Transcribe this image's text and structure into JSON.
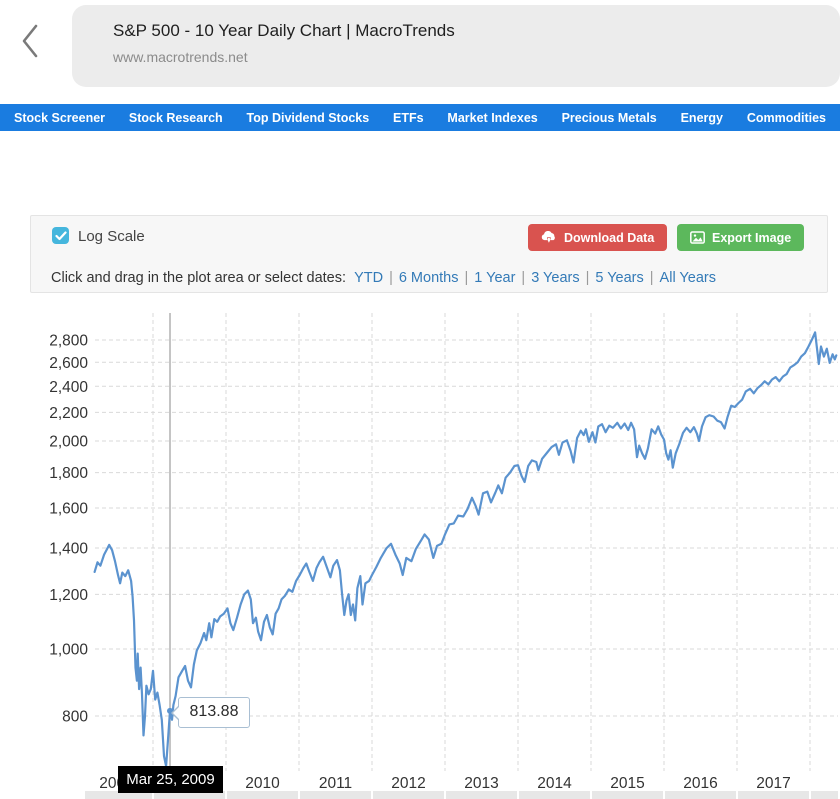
{
  "browser": {
    "back_icon": "chevron-left",
    "title": "S&P 500 - 10 Year Daily Chart | MacroTrends",
    "url": "www.macrotrends.net"
  },
  "nav": {
    "bg_color": "#1a7ce0",
    "items": [
      "Stock Screener",
      "Stock Research",
      "Top Dividend Stocks",
      "ETFs",
      "Market Indexes",
      "Precious Metals",
      "Energy",
      "Commodities"
    ]
  },
  "controls": {
    "log_scale_label": "Log Scale",
    "log_scale_checked": true,
    "checkbox_color": "#45b6dd",
    "download_button": {
      "label": "Download Data",
      "color": "#d9534f",
      "icon": "download-cloud-icon"
    },
    "export_button": {
      "label": "Export Image",
      "color": "#5cb85c",
      "icon": "image-icon"
    },
    "date_prompt": "Click and drag in the plot area or select dates:",
    "date_links": [
      "YTD",
      "6 Months",
      "1 Year",
      "3 Years",
      "5 Years",
      "All Years"
    ],
    "link_color": "#337ab7",
    "separator": "|"
  },
  "chart_data": {
    "type": "line",
    "title": "",
    "scale": "log",
    "grid": true,
    "line_color": "#5b93cf",
    "grid_color": "#d9d9d9",
    "crosshair_color": "#ababab",
    "x_range": [
      2008.2,
      2018.36
    ],
    "y_range": [
      668,
      3040
    ],
    "y_ticks": [
      800,
      1000,
      1200,
      1400,
      1600,
      1800,
      2000,
      2200,
      2400,
      2600,
      2800
    ],
    "y_tick_labels": [
      "800",
      "1,000",
      "1,200",
      "1,400",
      "1,600",
      "1,800",
      "2,000",
      "2,200",
      "2,400",
      "2,600",
      "2,800"
    ],
    "x_tick_years": [
      2008,
      2009,
      2010,
      2011,
      2012,
      2013,
      2014,
      2015,
      2016,
      2017
    ],
    "x_tick_labels": [
      "2008",
      "2009",
      "2010",
      "2011",
      "2012",
      "2013",
      "2014",
      "2015",
      "2016",
      "2017"
    ],
    "crosshair": {
      "t": 2009.233,
      "value": 813.88,
      "value_label": "813.88",
      "date_label": "Mar 25, 2009"
    },
    "series": [
      {
        "name": "S&P 500",
        "points": [
          [
            2008.2,
            1293
          ],
          [
            2008.24,
            1335
          ],
          [
            2008.28,
            1320
          ],
          [
            2008.33,
            1370
          ],
          [
            2008.37,
            1395
          ],
          [
            2008.4,
            1415
          ],
          [
            2008.44,
            1390
          ],
          [
            2008.48,
            1340
          ],
          [
            2008.52,
            1280
          ],
          [
            2008.55,
            1245
          ],
          [
            2008.58,
            1290
          ],
          [
            2008.62,
            1275
          ],
          [
            2008.66,
            1300
          ],
          [
            2008.7,
            1255
          ],
          [
            2008.72,
            1190
          ],
          [
            2008.74,
            1100
          ],
          [
            2008.76,
            940
          ],
          [
            2008.78,
            900
          ],
          [
            2008.79,
            985
          ],
          [
            2008.81,
            875
          ],
          [
            2008.83,
            940
          ],
          [
            2008.85,
            860
          ],
          [
            2008.87,
            750
          ],
          [
            2008.89,
            800
          ],
          [
            2008.91,
            885
          ],
          [
            2008.94,
            860
          ],
          [
            2008.97,
            875
          ],
          [
            2009.0,
            930
          ],
          [
            2009.03,
            845
          ],
          [
            2009.06,
            865
          ],
          [
            2009.09,
            830
          ],
          [
            2009.12,
            790
          ],
          [
            2009.15,
            700
          ],
          [
            2009.18,
            677
          ],
          [
            2009.21,
            750
          ],
          [
            2009.233,
            813.88
          ],
          [
            2009.26,
            790
          ],
          [
            2009.28,
            830
          ],
          [
            2009.31,
            855
          ],
          [
            2009.35,
            910
          ],
          [
            2009.4,
            930
          ],
          [
            2009.44,
            945
          ],
          [
            2009.48,
            900
          ],
          [
            2009.52,
            880
          ],
          [
            2009.56,
            950
          ],
          [
            2009.6,
            995
          ],
          [
            2009.65,
            1020
          ],
          [
            2009.7,
            1055
          ],
          [
            2009.73,
            1030
          ],
          [
            2009.77,
            1090
          ],
          [
            2009.8,
            1040
          ],
          [
            2009.84,
            1105
          ],
          [
            2009.88,
            1095
          ],
          [
            2009.92,
            1115
          ],
          [
            2009.97,
            1125
          ],
          [
            2010.02,
            1145
          ],
          [
            2010.06,
            1090
          ],
          [
            2010.1,
            1065
          ],
          [
            2010.15,
            1110
          ],
          [
            2010.2,
            1160
          ],
          [
            2010.25,
            1200
          ],
          [
            2010.3,
            1215
          ],
          [
            2010.34,
            1180
          ],
          [
            2010.37,
            1090
          ],
          [
            2010.41,
            1110
          ],
          [
            2010.44,
            1060
          ],
          [
            2010.48,
            1030
          ],
          [
            2010.52,
            1095
          ],
          [
            2010.56,
            1120
          ],
          [
            2010.6,
            1075
          ],
          [
            2010.64,
            1050
          ],
          [
            2010.68,
            1125
          ],
          [
            2010.72,
            1145
          ],
          [
            2010.76,
            1180
          ],
          [
            2010.81,
            1195
          ],
          [
            2010.86,
            1220
          ],
          [
            2010.91,
            1210
          ],
          [
            2010.96,
            1255
          ],
          [
            2011.01,
            1280
          ],
          [
            2011.06,
            1310
          ],
          [
            2011.1,
            1330
          ],
          [
            2011.14,
            1295
          ],
          [
            2011.19,
            1255
          ],
          [
            2011.24,
            1310
          ],
          [
            2011.28,
            1335
          ],
          [
            2011.33,
            1360
          ],
          [
            2011.38,
            1315
          ],
          [
            2011.43,
            1270
          ],
          [
            2011.47,
            1320
          ],
          [
            2011.52,
            1345
          ],
          [
            2011.56,
            1300
          ],
          [
            2011.59,
            1200
          ],
          [
            2011.62,
            1120
          ],
          [
            2011.65,
            1175
          ],
          [
            2011.68,
            1200
          ],
          [
            2011.71,
            1120
          ],
          [
            2011.74,
            1160
          ],
          [
            2011.77,
            1100
          ],
          [
            2011.8,
            1225
          ],
          [
            2011.84,
            1275
          ],
          [
            2011.87,
            1160
          ],
          [
            2011.91,
            1245
          ],
          [
            2011.96,
            1255
          ],
          [
            2012.0,
            1280
          ],
          [
            2012.06,
            1315
          ],
          [
            2012.12,
            1355
          ],
          [
            2012.2,
            1400
          ],
          [
            2012.26,
            1420
          ],
          [
            2012.32,
            1370
          ],
          [
            2012.38,
            1330
          ],
          [
            2012.42,
            1280
          ],
          [
            2012.47,
            1355
          ],
          [
            2012.54,
            1340
          ],
          [
            2012.6,
            1395
          ],
          [
            2012.68,
            1440
          ],
          [
            2012.72,
            1465
          ],
          [
            2012.78,
            1440
          ],
          [
            2012.84,
            1355
          ],
          [
            2012.89,
            1410
          ],
          [
            2012.95,
            1420
          ],
          [
            2013.0,
            1465
          ],
          [
            2013.06,
            1515
          ],
          [
            2013.12,
            1520
          ],
          [
            2013.18,
            1560
          ],
          [
            2013.25,
            1555
          ],
          [
            2013.31,
            1595
          ],
          [
            2013.37,
            1655
          ],
          [
            2013.42,
            1610
          ],
          [
            2013.46,
            1565
          ],
          [
            2013.52,
            1680
          ],
          [
            2013.58,
            1690
          ],
          [
            2013.63,
            1630
          ],
          [
            2013.69,
            1685
          ],
          [
            2013.73,
            1725
          ],
          [
            2013.78,
            1680
          ],
          [
            2013.83,
            1770
          ],
          [
            2013.89,
            1800
          ],
          [
            2013.95,
            1840
          ],
          [
            2014.0,
            1845
          ],
          [
            2014.05,
            1780
          ],
          [
            2014.09,
            1745
          ],
          [
            2014.14,
            1840
          ],
          [
            2014.19,
            1875
          ],
          [
            2014.25,
            1865
          ],
          [
            2014.28,
            1815
          ],
          [
            2014.33,
            1885
          ],
          [
            2014.4,
            1925
          ],
          [
            2014.46,
            1960
          ],
          [
            2014.52,
            1978
          ],
          [
            2014.56,
            1910
          ],
          [
            2014.61,
            1990
          ],
          [
            2014.67,
            2005
          ],
          [
            2014.72,
            1935
          ],
          [
            2014.76,
            1862
          ],
          [
            2014.81,
            2020
          ],
          [
            2014.86,
            2070
          ],
          [
            2014.9,
            2040
          ],
          [
            2014.93,
            2080
          ],
          [
            2014.97,
            1995
          ],
          [
            2015.02,
            2060
          ],
          [
            2015.06,
            1990
          ],
          [
            2015.1,
            2100
          ],
          [
            2015.15,
            2115
          ],
          [
            2015.2,
            2060
          ],
          [
            2015.25,
            2105
          ],
          [
            2015.3,
            2090
          ],
          [
            2015.36,
            2125
          ],
          [
            2015.41,
            2085
          ],
          [
            2015.46,
            2120
          ],
          [
            2015.51,
            2075
          ],
          [
            2015.55,
            2125
          ],
          [
            2015.59,
            2080
          ],
          [
            2015.63,
            1895
          ],
          [
            2015.66,
            1970
          ],
          [
            2015.7,
            1920
          ],
          [
            2015.74,
            1885
          ],
          [
            2015.78,
            1950
          ],
          [
            2015.83,
            2080
          ],
          [
            2015.88,
            2050
          ],
          [
            2015.92,
            2100
          ],
          [
            2015.96,
            2045
          ],
          [
            2016.0,
            2010
          ],
          [
            2016.03,
            1920
          ],
          [
            2016.06,
            1880
          ],
          [
            2016.09,
            1940
          ],
          [
            2016.12,
            1830
          ],
          [
            2016.16,
            1920
          ],
          [
            2016.21,
            1980
          ],
          [
            2016.26,
            2055
          ],
          [
            2016.31,
            2090
          ],
          [
            2016.36,
            2060
          ],
          [
            2016.41,
            2095
          ],
          [
            2016.45,
            2050
          ],
          [
            2016.48,
            2000
          ],
          [
            2016.52,
            2100
          ],
          [
            2016.57,
            2165
          ],
          [
            2016.62,
            2180
          ],
          [
            2016.68,
            2170
          ],
          [
            2016.73,
            2140
          ],
          [
            2016.78,
            2130
          ],
          [
            2016.83,
            2085
          ],
          [
            2016.87,
            2165
          ],
          [
            2016.92,
            2250
          ],
          [
            2016.97,
            2240
          ],
          [
            2017.02,
            2270
          ],
          [
            2017.07,
            2295
          ],
          [
            2017.12,
            2360
          ],
          [
            2017.18,
            2380
          ],
          [
            2017.23,
            2345
          ],
          [
            2017.28,
            2385
          ],
          [
            2017.33,
            2410
          ],
          [
            2017.38,
            2440
          ],
          [
            2017.43,
            2415
          ],
          [
            2017.48,
            2455
          ],
          [
            2017.53,
            2475
          ],
          [
            2017.58,
            2440
          ],
          [
            2017.63,
            2480
          ],
          [
            2017.68,
            2500
          ],
          [
            2017.73,
            2555
          ],
          [
            2017.78,
            2575
          ],
          [
            2017.83,
            2600
          ],
          [
            2017.88,
            2650
          ],
          [
            2017.93,
            2680
          ],
          [
            2017.98,
            2740
          ],
          [
            2018.03,
            2810
          ],
          [
            2018.07,
            2872
          ],
          [
            2018.1,
            2700
          ],
          [
            2018.12,
            2585
          ],
          [
            2018.15,
            2740
          ],
          [
            2018.19,
            2650
          ],
          [
            2018.23,
            2720
          ],
          [
            2018.27,
            2595
          ],
          [
            2018.31,
            2670
          ],
          [
            2018.34,
            2625
          ],
          [
            2018.36,
            2660
          ]
        ]
      }
    ]
  }
}
